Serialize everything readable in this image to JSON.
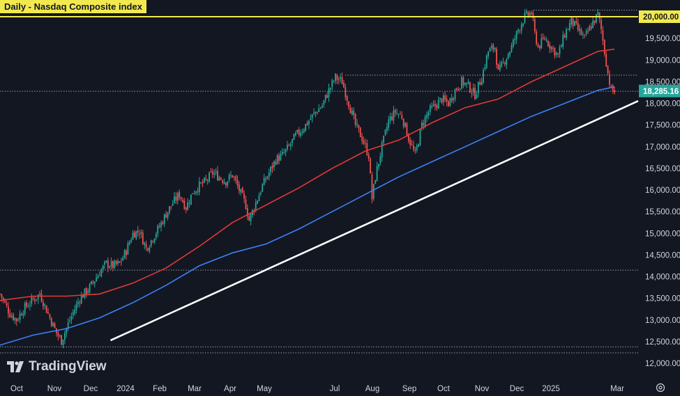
{
  "title": "Daily - Nasdaq Composite index",
  "branding": "TradingView",
  "colors": {
    "background": "#131722",
    "up": "#26a69a",
    "down": "#ef5350",
    "ma_red": "#e53935",
    "ma_blue": "#3b82f6",
    "trendline": "#ffffff",
    "resistance": "#f2e94e",
    "axis_text": "#d1d4dc",
    "dotted": "#9598a1"
  },
  "chart_data": {
    "type": "candlestick",
    "ylim": [
      12000,
      20000
    ],
    "y_ticks": [
      "20,000.00",
      "19,500.00",
      "19,000.00",
      "18,500.00",
      "18,000.00",
      "17,500.00",
      "17,000.00",
      "16,500.00",
      "16,000.00",
      "15,500.00",
      "15,000.00",
      "14,500.00",
      "14,000.00",
      "13,500.00",
      "13,000.00",
      "12,500.00",
      "12,000.00"
    ],
    "x_ticks": [
      "Oct",
      "Nov",
      "Dec",
      "2024",
      "Feb",
      "Mar",
      "Apr",
      "May",
      "Jul",
      "Aug",
      "Sep",
      "Oct",
      "Nov",
      "Dec",
      "2025",
      "Mar"
    ],
    "last_price": "18,285.16",
    "resistance_level": 20000,
    "dotted_levels": [
      20150,
      18650,
      18280,
      14150,
      12380,
      12240
    ],
    "series": [
      {
        "name": "price",
        "values": [
          {
            "t": 0,
            "v": 13600
          },
          {
            "t": 6,
            "v": 13150
          },
          {
            "t": 10,
            "v": 13000
          },
          {
            "t": 14,
            "v": 13250
          },
          {
            "t": 18,
            "v": 13400
          },
          {
            "t": 24,
            "v": 13600
          },
          {
            "t": 30,
            "v": 13050
          },
          {
            "t": 34,
            "v": 12700
          },
          {
            "t": 37,
            "v": 12520
          },
          {
            "t": 42,
            "v": 13000
          },
          {
            "t": 48,
            "v": 13500
          },
          {
            "t": 54,
            "v": 13750
          },
          {
            "t": 60,
            "v": 14100
          },
          {
            "t": 64,
            "v": 14300
          },
          {
            "t": 68,
            "v": 14250
          },
          {
            "t": 72,
            "v": 14300
          },
          {
            "t": 76,
            "v": 14600
          },
          {
            "t": 80,
            "v": 15000
          },
          {
            "t": 84,
            "v": 15050
          },
          {
            "t": 88,
            "v": 14650
          },
          {
            "t": 92,
            "v": 14900
          },
          {
            "t": 96,
            "v": 15150
          },
          {
            "t": 100,
            "v": 15450
          },
          {
            "t": 104,
            "v": 15700
          },
          {
            "t": 108,
            "v": 15900
          },
          {
            "t": 112,
            "v": 15600
          },
          {
            "t": 116,
            "v": 15950
          },
          {
            "t": 120,
            "v": 16100
          },
          {
            "t": 124,
            "v": 16200
          },
          {
            "t": 128,
            "v": 16400
          },
          {
            "t": 132,
            "v": 16300
          },
          {
            "t": 136,
            "v": 16200
          },
          {
            "t": 140,
            "v": 16350
          },
          {
            "t": 144,
            "v": 16000
          },
          {
            "t": 148,
            "v": 15650
          },
          {
            "t": 150,
            "v": 15300
          },
          {
            "t": 154,
            "v": 15700
          },
          {
            "t": 158,
            "v": 16100
          },
          {
            "t": 162,
            "v": 16400
          },
          {
            "t": 166,
            "v": 16700
          },
          {
            "t": 170,
            "v": 16800
          },
          {
            "t": 174,
            "v": 17000
          },
          {
            "t": 178,
            "v": 17250
          },
          {
            "t": 182,
            "v": 17400
          },
          {
            "t": 186,
            "v": 17600
          },
          {
            "t": 190,
            "v": 17800
          },
          {
            "t": 194,
            "v": 17950
          },
          {
            "t": 198,
            "v": 18300
          },
          {
            "t": 202,
            "v": 18600
          },
          {
            "t": 206,
            "v": 18500
          },
          {
            "t": 210,
            "v": 18000
          },
          {
            "t": 214,
            "v": 17500
          },
          {
            "t": 218,
            "v": 17200
          },
          {
            "t": 222,
            "v": 16800
          },
          {
            "t": 224,
            "v": 15800
          },
          {
            "t": 226,
            "v": 16300
          },
          {
            "t": 230,
            "v": 17000
          },
          {
            "t": 234,
            "v": 17600
          },
          {
            "t": 238,
            "v": 17800
          },
          {
            "t": 242,
            "v": 17700
          },
          {
            "t": 246,
            "v": 17200
          },
          {
            "t": 250,
            "v": 16800
          },
          {
            "t": 254,
            "v": 17500
          },
          {
            "t": 258,
            "v": 17800
          },
          {
            "t": 262,
            "v": 17950
          },
          {
            "t": 266,
            "v": 18100
          },
          {
            "t": 270,
            "v": 18000
          },
          {
            "t": 274,
            "v": 18300
          },
          {
            "t": 278,
            "v": 18500
          },
          {
            "t": 282,
            "v": 18400
          },
          {
            "t": 286,
            "v": 18200
          },
          {
            "t": 290,
            "v": 18600
          },
          {
            "t": 294,
            "v": 19200
          },
          {
            "t": 298,
            "v": 19300
          },
          {
            "t": 300,
            "v": 18700
          },
          {
            "t": 304,
            "v": 19000
          },
          {
            "t": 308,
            "v": 19300
          },
          {
            "t": 312,
            "v": 19700
          },
          {
            "t": 316,
            "v": 20000
          },
          {
            "t": 320,
            "v": 20100
          },
          {
            "t": 322,
            "v": 19600
          },
          {
            "t": 324,
            "v": 19300
          },
          {
            "t": 328,
            "v": 19500
          },
          {
            "t": 332,
            "v": 19300
          },
          {
            "t": 336,
            "v": 19100
          },
          {
            "t": 340,
            "v": 19600
          },
          {
            "t": 344,
            "v": 19900
          },
          {
            "t": 348,
            "v": 19700
          },
          {
            "t": 352,
            "v": 19500
          },
          {
            "t": 356,
            "v": 19800
          },
          {
            "t": 360,
            "v": 20050
          },
          {
            "t": 362,
            "v": 19700
          },
          {
            "t": 364,
            "v": 19200
          },
          {
            "t": 366,
            "v": 18700
          },
          {
            "t": 368,
            "v": 18300
          },
          {
            "t": 370,
            "v": 18285
          }
        ]
      },
      {
        "name": "ma_red",
        "values": [
          {
            "t": 0,
            "v": 13450
          },
          {
            "t": 20,
            "v": 13550
          },
          {
            "t": 40,
            "v": 13550
          },
          {
            "t": 60,
            "v": 13600
          },
          {
            "t": 80,
            "v": 13850
          },
          {
            "t": 100,
            "v": 14200
          },
          {
            "t": 120,
            "v": 14700
          },
          {
            "t": 140,
            "v": 15250
          },
          {
            "t": 160,
            "v": 15650
          },
          {
            "t": 180,
            "v": 16050
          },
          {
            "t": 200,
            "v": 16500
          },
          {
            "t": 220,
            "v": 16900
          },
          {
            "t": 240,
            "v": 17150
          },
          {
            "t": 260,
            "v": 17550
          },
          {
            "t": 280,
            "v": 17900
          },
          {
            "t": 300,
            "v": 18100
          },
          {
            "t": 320,
            "v": 18500
          },
          {
            "t": 340,
            "v": 18850
          },
          {
            "t": 360,
            "v": 19200
          },
          {
            "t": 370,
            "v": 19250
          }
        ]
      },
      {
        "name": "ma_blue",
        "values": [
          {
            "t": 0,
            "v": 12420
          },
          {
            "t": 20,
            "v": 12650
          },
          {
            "t": 40,
            "v": 12800
          },
          {
            "t": 60,
            "v": 13050
          },
          {
            "t": 80,
            "v": 13400
          },
          {
            "t": 100,
            "v": 13800
          },
          {
            "t": 120,
            "v": 14250
          },
          {
            "t": 140,
            "v": 14550
          },
          {
            "t": 160,
            "v": 14750
          },
          {
            "t": 180,
            "v": 15100
          },
          {
            "t": 200,
            "v": 15500
          },
          {
            "t": 220,
            "v": 15900
          },
          {
            "t": 240,
            "v": 16300
          },
          {
            "t": 260,
            "v": 16650
          },
          {
            "t": 280,
            "v": 17000
          },
          {
            "t": 300,
            "v": 17350
          },
          {
            "t": 320,
            "v": 17700
          },
          {
            "t": 340,
            "v": 18000
          },
          {
            "t": 360,
            "v": 18300
          },
          {
            "t": 370,
            "v": 18380
          }
        ]
      },
      {
        "name": "trendline",
        "values": [
          {
            "t": 38,
            "v": 12530
          },
          {
            "t": 375,
            "v": 18280
          }
        ]
      }
    ]
  }
}
